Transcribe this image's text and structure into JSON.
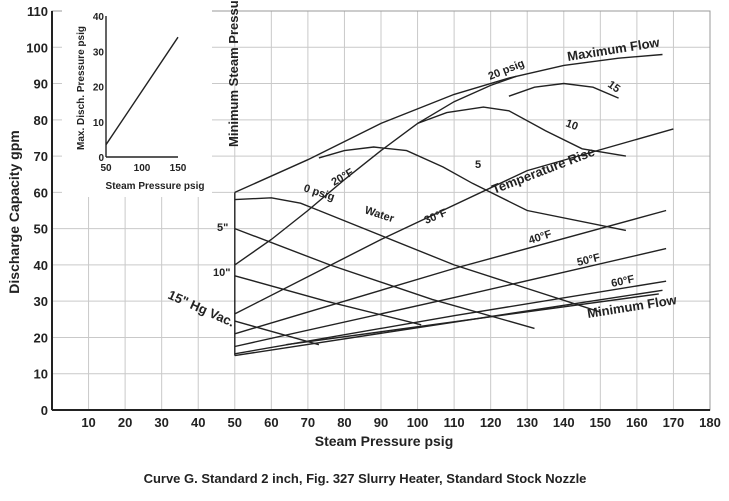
{
  "chart_data": {
    "type": "line",
    "xlabel": "Steam Pressure psig",
    "ylabel": "Discharge Capacity gpm",
    "xlim": [
      0,
      180
    ],
    "ylim": [
      0,
      110
    ],
    "x_ticks": [
      10,
      20,
      30,
      40,
      50,
      60,
      70,
      80,
      90,
      100,
      110,
      120,
      130,
      140,
      150,
      160,
      170,
      180
    ],
    "y_ticks": [
      0,
      10,
      20,
      30,
      40,
      50,
      60,
      70,
      80,
      90,
      100,
      110
    ],
    "grid": true,
    "caption": "Curve G.  Standard 2 inch, Fig. 327 Slurry Heater, Standard Stock Nozzle",
    "boundaries": [
      {
        "name": "Maximum Flow",
        "points": [
          [
            50,
            60
          ],
          [
            70,
            69
          ],
          [
            90,
            79
          ],
          [
            110,
            87
          ],
          [
            125,
            91.5
          ],
          [
            140,
            95
          ],
          [
            155,
            97
          ],
          [
            167,
            98
          ]
        ]
      },
      {
        "name": "Minimum Flow",
        "points": [
          [
            50,
            15
          ],
          [
            167,
            33
          ]
        ]
      },
      {
        "name": "Minimum Steam Pressure",
        "points": [
          [
            50,
            15
          ],
          [
            50,
            60
          ]
        ]
      }
    ],
    "series": [
      {
        "name": "0 psig",
        "points": [
          [
            50,
            58
          ],
          [
            60,
            58.5
          ],
          [
            68,
            57
          ],
          [
            73,
            55
          ]
        ]
      },
      {
        "name": "5",
        "points": [
          [
            73,
            69.5
          ],
          [
            80,
            71.5
          ],
          [
            88,
            72.5
          ],
          [
            97,
            71.5
          ],
          [
            107,
            67
          ],
          [
            115,
            62.5
          ],
          [
            130,
            55
          ],
          [
            157,
            49.5
          ]
        ]
      },
      {
        "name": "10",
        "points": [
          [
            100,
            79
          ],
          [
            108,
            82
          ],
          [
            118,
            83.5
          ],
          [
            125,
            82.5
          ],
          [
            135,
            77
          ],
          [
            145,
            72
          ],
          [
            157,
            70
          ]
        ]
      },
      {
        "name": "15",
        "points": [
          [
            125,
            86.5
          ],
          [
            132,
            89
          ],
          [
            140,
            90
          ],
          [
            148,
            89
          ],
          [
            155,
            86
          ]
        ]
      },
      {
        "name": "20 psig",
        "points": [
          [
            50,
            40
          ],
          [
            60,
            47
          ],
          [
            70,
            55
          ],
          [
            80,
            63.5
          ],
          [
            90,
            71.5
          ],
          [
            100,
            79
          ],
          [
            110,
            85
          ],
          [
            120,
            89.5
          ],
          [
            127,
            92
          ]
        ]
      },
      {
        "name": "Water",
        "points": [
          [
            73,
            55
          ],
          [
            110,
            40
          ],
          [
            150,
            27
          ]
        ]
      },
      {
        "name": "5\"",
        "points": [
          [
            50,
            50
          ],
          [
            76,
            40
          ],
          [
            104,
            30.5
          ],
          [
            132,
            22.5
          ]
        ]
      },
      {
        "name": "10\"",
        "points": [
          [
            50,
            37
          ],
          [
            75,
            30
          ],
          [
            101,
            23.5
          ]
        ]
      },
      {
        "name": "15\" Hg Vac.",
        "points": [
          [
            50,
            24.5
          ],
          [
            73,
            18
          ]
        ]
      },
      {
        "name": "20°F",
        "points": [
          [
            50,
            26.5
          ],
          [
            90,
            47
          ],
          [
            130,
            66
          ],
          [
            170,
            77.5
          ]
        ]
      },
      {
        "name": "30°F",
        "points": [
          [
            50,
            21
          ],
          [
            110,
            39
          ],
          [
            168,
            55
          ]
        ]
      },
      {
        "name": "40°F",
        "points": [
          [
            50,
            17.5
          ],
          [
            110,
            31
          ],
          [
            168,
            44.5
          ]
        ]
      },
      {
        "name": "50°F",
        "points": [
          [
            50,
            15.5
          ],
          [
            110,
            26
          ],
          [
            168,
            35.5
          ]
        ]
      },
      {
        "name": "60°F",
        "points": [
          [
            64,
            18
          ],
          [
            166,
            32
          ]
        ]
      }
    ],
    "annotations": [
      "Maximum Flow",
      "Minimum Flow",
      "Temperature Rise",
      "Minimum Steam Pressure",
      "20 psig",
      "15",
      "10",
      "5",
      "0 psig",
      "Water",
      "5\"",
      "10\"",
      "15\" Hg Vac.",
      "20°F",
      "30°F",
      "40°F",
      "50°F",
      "60°F"
    ],
    "inset": {
      "type": "line",
      "xlabel": "Steam Pressure psig",
      "ylabel": "Max. Disch. Pressure psig",
      "x_ticks": [
        50,
        100,
        150
      ],
      "y_ticks": [
        0,
        10,
        20,
        30,
        40
      ],
      "xlim": [
        50,
        150
      ],
      "ylim": [
        0,
        40
      ],
      "series": [
        {
          "points": [
            [
              50,
              3.5
            ],
            [
              150,
              34
            ]
          ]
        }
      ]
    }
  }
}
